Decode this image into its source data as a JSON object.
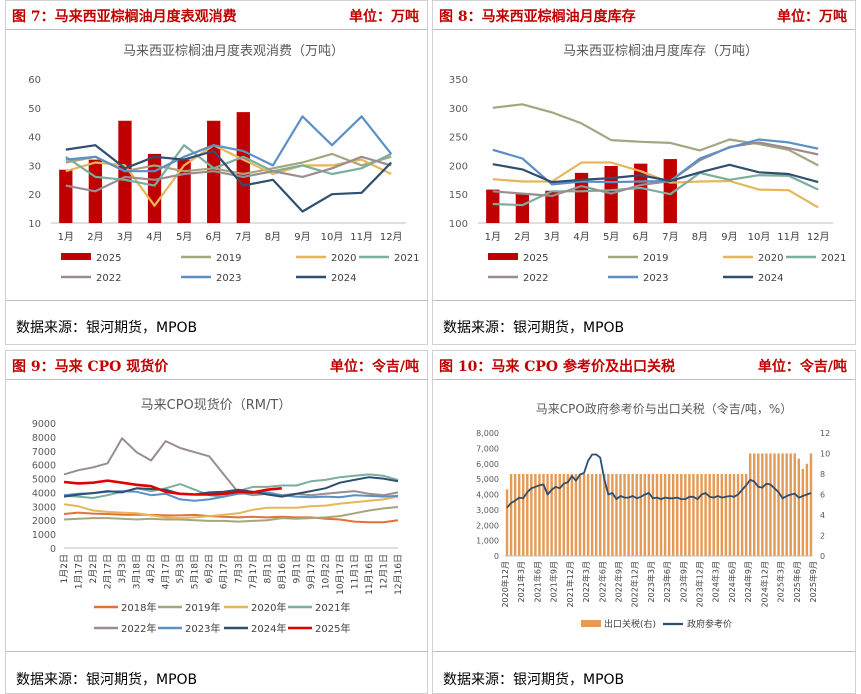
{
  "panels": {
    "p7": {
      "caption": "图 7：马来西亚棕榈油月度表观消费",
      "unit": "单位：万吨",
      "source": "数据来源：银河期货，MPOB"
    },
    "p8": {
      "caption": "图 8：马来西亚棕榈油月度库存",
      "unit": "单位：万吨",
      "source": "数据来源：银河期货，MPOB"
    },
    "p9": {
      "caption": "图 9：马来 CPO 现货价",
      "unit": "单位：令吉/吨",
      "source": "数据来源：银河期货，MPOB"
    },
    "p10": {
      "caption": "图 10：马来 CPO 参考价及出口关税",
      "unit": "单位：令吉/吨",
      "source": "数据来源：银河期货，MPOB"
    }
  },
  "colors": {
    "2025": "#c00000",
    "2019": "#a5a57f",
    "2020": "#e6b659",
    "2021": "#7aae9e",
    "2022": "#9b8d8f",
    "2023": "#5b8fc6",
    "2024": "#2f4f6f"
  },
  "chart_data": [
    {
      "id": "consumption",
      "type": "bar+line",
      "title": "马来西亚棕榈油月度表观消费（万吨）",
      "categories": [
        "1月",
        "2月",
        "3月",
        "4月",
        "5月",
        "6月",
        "7月",
        "8月",
        "9月",
        "10月",
        "11月",
        "12月"
      ],
      "ylim": [
        10,
        60
      ],
      "yticks": [
        10,
        20,
        30,
        40,
        50,
        60
      ],
      "bar_series": {
        "name": "2025",
        "values": [
          28.5,
          32,
          45.5,
          34,
          32,
          45.5,
          48.5,
          null,
          null,
          null,
          null,
          null
        ]
      },
      "series": [
        {
          "name": "2019",
          "values": [
            31,
            33,
            28,
            30,
            28,
            29,
            27,
            29,
            31,
            34,
            30,
            33
          ]
        },
        {
          "name": "2020",
          "values": [
            28,
            31,
            30,
            16,
            30,
            37,
            32,
            27,
            30,
            30,
            32,
            27
          ]
        },
        {
          "name": "2021",
          "values": [
            33,
            26,
            25,
            23,
            37,
            29,
            33,
            28,
            30,
            27,
            29,
            34
          ]
        },
        {
          "name": "2022",
          "values": [
            23,
            21,
            26,
            25,
            27,
            28,
            26,
            28,
            26,
            29,
            33,
            30
          ]
        },
        {
          "name": "2023",
          "values": [
            32,
            33,
            28,
            28,
            33,
            37,
            35,
            30,
            47,
            37,
            47,
            34
          ]
        },
        {
          "name": "2024",
          "values": [
            35.5,
            37,
            29,
            33,
            32,
            35,
            23,
            25,
            14,
            20,
            20.5,
            31
          ]
        }
      ],
      "legend": [
        "2025",
        "2019",
        "2020",
        "2021",
        "2022",
        "2023",
        "2024"
      ]
    },
    {
      "id": "inventory",
      "type": "bar+line",
      "title": "马来西亚棕榈油月度库存（万吨）",
      "categories": [
        "1月",
        "2月",
        "3月",
        "4月",
        "5月",
        "6月",
        "7月",
        "8月",
        "9月",
        "10月",
        "11月",
        "12月"
      ],
      "ylim": [
        100,
        350
      ],
      "yticks": [
        100,
        150,
        200,
        250,
        300,
        350
      ],
      "bar_series": {
        "name": "2025",
        "values": [
          158,
          151,
          156,
          187,
          199,
          203,
          211,
          null,
          null,
          null,
          null,
          null
        ]
      },
      "series": [
        {
          "name": "2019",
          "values": [
            300,
            306,
            292,
            273,
            244,
            241,
            239,
            226,
            245,
            237,
            227,
            200
          ]
        },
        {
          "name": "2020",
          "values": [
            176,
            172,
            172,
            205,
            205,
            190,
            170,
            172,
            173,
            158,
            157,
            127
          ]
        },
        {
          "name": "2021",
          "values": [
            133,
            131,
            155,
            155,
            157,
            161,
            150,
            187,
            175,
            183,
            182,
            158
          ]
        },
        {
          "name": "2022",
          "values": [
            155,
            151,
            147,
            164,
            151,
            166,
            173,
            209,
            232,
            240,
            230,
            219
          ]
        },
        {
          "name": "2023",
          "values": [
            227,
            212,
            167,
            172,
            171,
            172,
            173,
            212,
            231,
            245,
            240,
            229
          ]
        },
        {
          "name": "2024",
          "values": [
            202,
            193,
            171,
            175,
            178,
            183,
            173,
            188,
            201,
            188,
            185,
            171
          ]
        }
      ],
      "legend": [
        "2025",
        "2019",
        "2020",
        "2021",
        "2022",
        "2023",
        "2024"
      ]
    },
    {
      "id": "spot_price",
      "type": "line",
      "title": "马来CPO现货价（RM/T）",
      "x_ticks": [
        "1月2日",
        "1月17日",
        "2月2日",
        "2月17日",
        "3月3日",
        "3月18日",
        "4月2日",
        "4月17日",
        "5月3日",
        "5月18日",
        "6月2日",
        "6月17日",
        "7月3日",
        "7月17日",
        "8月1日",
        "8月16日",
        "9月1日",
        "9月17日",
        "10月2日",
        "10月17日",
        "11月1日",
        "11月16日",
        "12月1日",
        "12月16日"
      ],
      "ylim": [
        0,
        9000
      ],
      "yticks": [
        0,
        1000,
        2000,
        3000,
        4000,
        5000,
        6000,
        7000,
        8000,
        9000
      ],
      "series": [
        {
          "name": "2018年",
          "values": [
            2450,
            2550,
            2480,
            2450,
            2400,
            2400,
            2380,
            2350,
            2350,
            2380,
            2300,
            2250,
            2200,
            2250,
            2200,
            2250,
            2200,
            2200,
            2100,
            2050,
            1900,
            1850,
            1850,
            2000
          ]
        },
        {
          "name": "2019年",
          "values": [
            2050,
            2100,
            2150,
            2150,
            2100,
            2050,
            2100,
            2050,
            2050,
            2000,
            1950,
            1950,
            1900,
            1950,
            2000,
            2150,
            2100,
            2150,
            2200,
            2300,
            2500,
            2700,
            2850,
            2950
          ]
        },
        {
          "name": "2020年",
          "values": [
            3150,
            3000,
            2700,
            2600,
            2550,
            2500,
            2350,
            2200,
            2150,
            2200,
            2300,
            2400,
            2500,
            2750,
            2900,
            2900,
            2900,
            3000,
            3050,
            3200,
            3300,
            3400,
            3500,
            3700
          ]
        },
        {
          "name": "2021年",
          "values": [
            3750,
            3700,
            3600,
            3800,
            4050,
            4300,
            4100,
            4300,
            4600,
            4200,
            3800,
            3700,
            4100,
            4400,
            4400,
            4500,
            4500,
            4800,
            4900,
            5100,
            5200,
            5300,
            5200,
            4900
          ]
        },
        {
          "name": "2022年",
          "values": [
            5300,
            5600,
            5800,
            6100,
            7900,
            6900,
            6300,
            7700,
            7200,
            6900,
            6600,
            5300,
            4000,
            3800,
            3900,
            3800,
            3900,
            3800,
            3900,
            4000,
            4100,
            3900,
            3800,
            4000
          ]
        },
        {
          "name": "2023年",
          "values": [
            3800,
            3900,
            3950,
            4050,
            4100,
            4050,
            3800,
            3900,
            3500,
            3400,
            3500,
            3700,
            3900,
            3950,
            4000,
            3800,
            3700,
            3650,
            3700,
            3650,
            3800,
            3750,
            3700,
            3750
          ]
        },
        {
          "name": "2024年",
          "values": [
            3700,
            3850,
            3950,
            4100,
            4000,
            4300,
            4250,
            4200,
            3900,
            3850,
            4000,
            4050,
            4200,
            4050,
            3850,
            3700,
            3900,
            4100,
            4300,
            4700,
            4900,
            5100,
            5000,
            4800
          ]
        },
        {
          "name": "2025年",
          "values": [
            4750,
            4650,
            4700,
            4850,
            4700,
            4550,
            4450,
            4050,
            3900,
            3850,
            3850,
            3900,
            4050,
            4000,
            4200,
            4300,
            null,
            null,
            null,
            null,
            null,
            null,
            null,
            null
          ]
        }
      ],
      "legend": [
        "2018年",
        "2019年",
        "2020年",
        "2021年",
        "2022年",
        "2023年",
        "2024年",
        "2025年"
      ],
      "series_colors": [
        "#e0723a",
        "#a5a57f",
        "#e6b659",
        "#7aae9e",
        "#9b8d8f",
        "#5b8fc6",
        "#2f4f6f",
        "#e00000"
      ]
    },
    {
      "id": "ref_price_tax",
      "type": "bar+line",
      "title": "马来CPO政府参考价与出口关税（令吉/吨，%）",
      "x_ticks": [
        "2020年12月",
        "2021年3月",
        "2021年6月",
        "2021年9月",
        "2021年12月",
        "2022年3月",
        "2022年6月",
        "2022年9月",
        "2022年12月",
        "2023年3月",
        "2023年6月",
        "2023年9月",
        "2023年12月",
        "2024年3月",
        "2024年6月",
        "2024年9月",
        "2024年12月",
        "2025年3月",
        "2025年6月",
        "2025年9月"
      ],
      "ylim_left": [
        0,
        8000
      ],
      "yticks_left": [
        0,
        1000,
        2000,
        3000,
        4000,
        5000,
        6000,
        7000,
        8000
      ],
      "ylim_right": [
        0,
        12
      ],
      "yticks_right": [
        0,
        2,
        4,
        6,
        8,
        10,
        12
      ],
      "bar_series": {
        "name": "出口关税(右)",
        "values": [
          6.5,
          8,
          8,
          8,
          8,
          8,
          8,
          8,
          8,
          8,
          8,
          8,
          8,
          8,
          8,
          8,
          8,
          8,
          8,
          8,
          8,
          8,
          8,
          8,
          8,
          8,
          8,
          8,
          8,
          8,
          8,
          8,
          8,
          8,
          8,
          8,
          8,
          8,
          8,
          8,
          8,
          8,
          8,
          8,
          8,
          8,
          8,
          8,
          8,
          8,
          8,
          8,
          8,
          8,
          8,
          8,
          8,
          8,
          8,
          8,
          10,
          10,
          10,
          10,
          10,
          10,
          10,
          10,
          10,
          10,
          10,
          10,
          9.5,
          8.5,
          9,
          10
        ]
      },
      "line_series": {
        "name": "政府参考价",
        "values": [
          3150,
          3450,
          3600,
          3800,
          3750,
          4150,
          4400,
          4500,
          4600,
          4650,
          4000,
          4300,
          4500,
          4400,
          4700,
          4800,
          5200,
          4900,
          5300,
          5400,
          6200,
          6600,
          6600,
          6400,
          5000,
          4000,
          4100,
          3700,
          3900,
          3800,
          3800,
          3900,
          3750,
          3850,
          4000,
          4100,
          3750,
          3800,
          3700,
          3800,
          3750,
          3750,
          3800,
          3700,
          3700,
          3850,
          3850,
          3700,
          4000,
          4100,
          3850,
          3800,
          3900,
          3800,
          3850,
          3900,
          3850,
          4000,
          4300,
          4600,
          4950,
          4850,
          4500,
          4450,
          4700,
          4650,
          4400,
          4150,
          3750,
          3900,
          4000,
          4050,
          3800,
          3900,
          4000,
          4100
        ]
      },
      "legend": [
        "出口关税(右)",
        "政府参考价"
      ],
      "series_colors": [
        "#e59a55",
        "#2f4f6f"
      ]
    }
  ]
}
